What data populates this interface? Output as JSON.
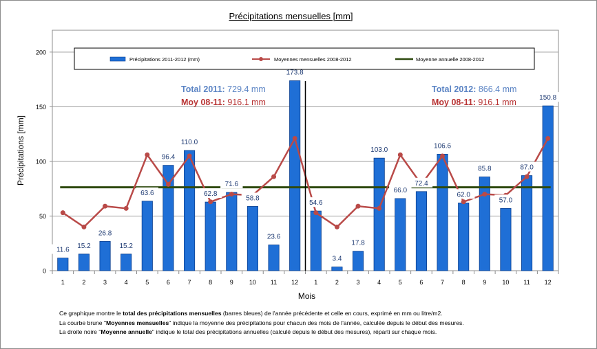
{
  "title": "Précipitations mensuelles [mm]",
  "chart_data": {
    "type": "bar",
    "ylabel": "Précipitations [mm]",
    "xlabel": "Mois",
    "ylim": [
      0,
      220
    ],
    "yticks": [
      "0",
      "50",
      "100",
      "150",
      "200"
    ],
    "grid": "horizontal",
    "categories": [
      "1",
      "2",
      "3",
      "4",
      "5",
      "6",
      "7",
      "8",
      "9",
      "10",
      "11",
      "12",
      "1",
      "2",
      "3",
      "4",
      "5",
      "6",
      "7",
      "8",
      "9",
      "10",
      "11",
      "12"
    ],
    "series": [
      {
        "name": "Précipitations  2011-2012  (mm)",
        "kind": "bar",
        "color": "#1f6fd6",
        "values": [
          11.6,
          15.2,
          26.8,
          15.2,
          63.6,
          96.4,
          110.0,
          62.8,
          71.6,
          58.8,
          23.6,
          173.8,
          54.6,
          3.4,
          17.8,
          103.0,
          66.0,
          72.4,
          106.6,
          62.0,
          85.8,
          57.0,
          87.0,
          150.8
        ],
        "labels": [
          "11.6",
          "15.2",
          "26.8",
          "15.2",
          "63.6",
          "96.4",
          "110.0",
          "62.8",
          "71.6",
          "58.8",
          "23.6",
          "173.8",
          "54.6",
          "3.4",
          "17.8",
          "103.0",
          "66.0",
          "72.4",
          "106.6",
          "62.0",
          "85.8",
          "57.0",
          "87.0",
          "150.8"
        ]
      },
      {
        "name": "Moyennes mensuelles  2008-2012",
        "kind": "line-marker",
        "color": "#b94a48",
        "values": [
          53,
          40,
          59,
          57,
          106,
          79,
          105,
          63,
          70,
          69,
          86,
          121,
          53,
          40,
          59,
          57,
          106,
          79,
          105,
          63,
          70,
          69,
          86,
          121
        ]
      },
      {
        "name": "Moyenne annuelle  2008-2012",
        "kind": "line",
        "color": "#2e4a0f",
        "values": [
          76.3,
          76.3,
          76.3,
          76.3,
          76.3,
          76.3,
          76.3,
          76.3,
          76.3,
          76.3,
          76.3,
          76.3,
          76.3,
          76.3,
          76.3,
          76.3,
          76.3,
          76.3,
          76.3,
          76.3,
          76.3,
          76.3,
          76.3,
          76.3
        ]
      }
    ],
    "legend_position": "top",
    "annotations": [
      {
        "label": "Total 2011:",
        "value": " 729.4  mm",
        "color": "#5b84c4"
      },
      {
        "label": "Moy 08-11:",
        "value": " 916.1  mm",
        "color": "#b83434"
      },
      {
        "label": "Total 2012:",
        "value": " 866.4  mm",
        "color": "#5b84c4"
      },
      {
        "label": "Moy 08-11:",
        "value": " 916.1  mm",
        "color": "#b83434"
      }
    ],
    "year_separator_after_index": 11
  },
  "footnote": [
    [
      "Ce graphique montre le ",
      "total des précipitations mensuelles",
      " (barres bleues) de l'année précédente et celle en cours, exprimé en mm ou litre/m2."
    ],
    [
      "La courbe brune \"",
      "Moyennes mensuelles",
      "\" indique la moyenne des précipitations pour chacun des mois de l'année, calculée depuis le début des mesures."
    ],
    [
      "La droite noire \"",
      "Moyenne annuelle",
      "\" indique le total des précipitations annuelles (calculé depuis le début des mesures), réparti sur chaque mois."
    ]
  ]
}
